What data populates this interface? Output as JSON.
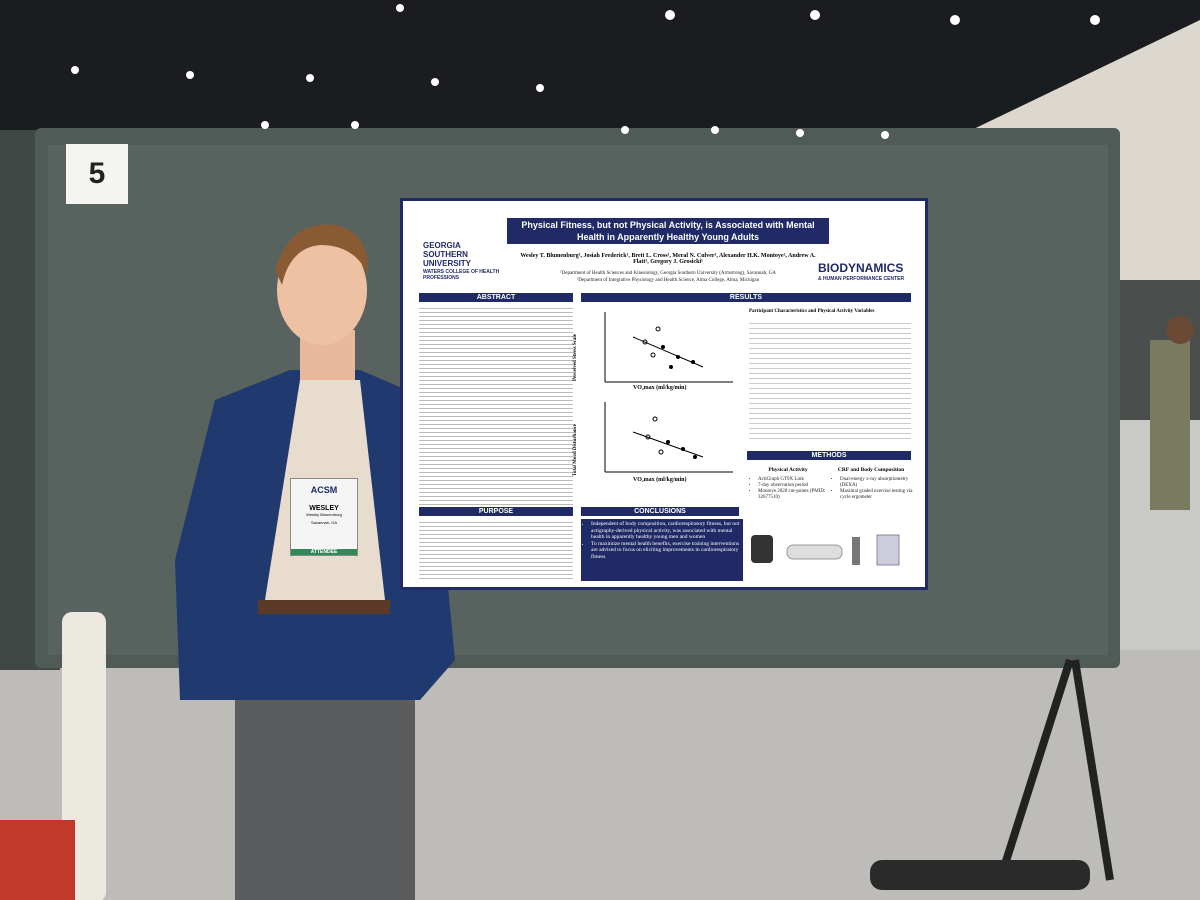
{
  "booth_number": "5",
  "poster": {
    "title": "Physical Fitness, but not Physical Activity, is Associated with Mental Health in Apparently Healthy Young Adults",
    "university": "GEORGIA SOUTHERN UNIVERSITY",
    "college": "WATERS COLLEGE OF HEALTH PROFESSIONS",
    "authors": "Wesley T. Blumenburg¹, Josiah Frederick¹, Brett L. Cross¹, Meral N. Culver¹, Alexander H.K. Montoye², Andrew A. Flatt¹, Gregory J. Grosicki¹",
    "affiliations": [
      "¹Department of Health Sciences and Kinesiology, Georgia Southern University (Armstrong), Savannah, GA",
      "²Department of Integrative Physiology and Health Science, Alma College, Alma, Michigan"
    ],
    "lab": "BIODYNAMICS",
    "lab_sub": "& HUMAN PERFORMANCE CENTER",
    "abstract_heading": "ABSTRACT",
    "results_heading": "RESULTS",
    "purpose_heading": "PURPOSE",
    "conclusions_heading": "CONCLUSIONS",
    "methods_heading": "METHODS",
    "table_title": "Participant Characteristics and Physical Activity Variables",
    "plot_y_a": "Perceived Stress Scale",
    "plot_y_b": "Total Mood Disturbance",
    "plot_x": "VO₂max (ml/kg/min)",
    "conclusions": [
      "Independent of body composition, cardiorespiratory fitness, but not actigraphy-derived physical activity, was associated with mental health in apparently healthy young men and women",
      "To maximize mental health benefits, exercise training interventions are advised to focus on eliciting improvements in cardiorespiratory fitness"
    ],
    "methods_pa_heading": "Physical Activity",
    "methods_pa": [
      "ActiGraph GT9X Link",
      "7-day observation period",
      "Montoye 2020 cut-points (PMID: 32677510)"
    ],
    "methods_crf_heading": "CRF and Body Composition",
    "methods_crf": [
      "Dual-energy x-ray absorptiometry (DEXA)",
      "Maximal graded exercise testing via cycle ergometer"
    ]
  },
  "badge": {
    "org": "ACSM",
    "name": "WESLEY",
    "full_name": "Wesley Blumenburg",
    "city": "Savannah, GA",
    "ribbon": "ATTENDEE"
  }
}
